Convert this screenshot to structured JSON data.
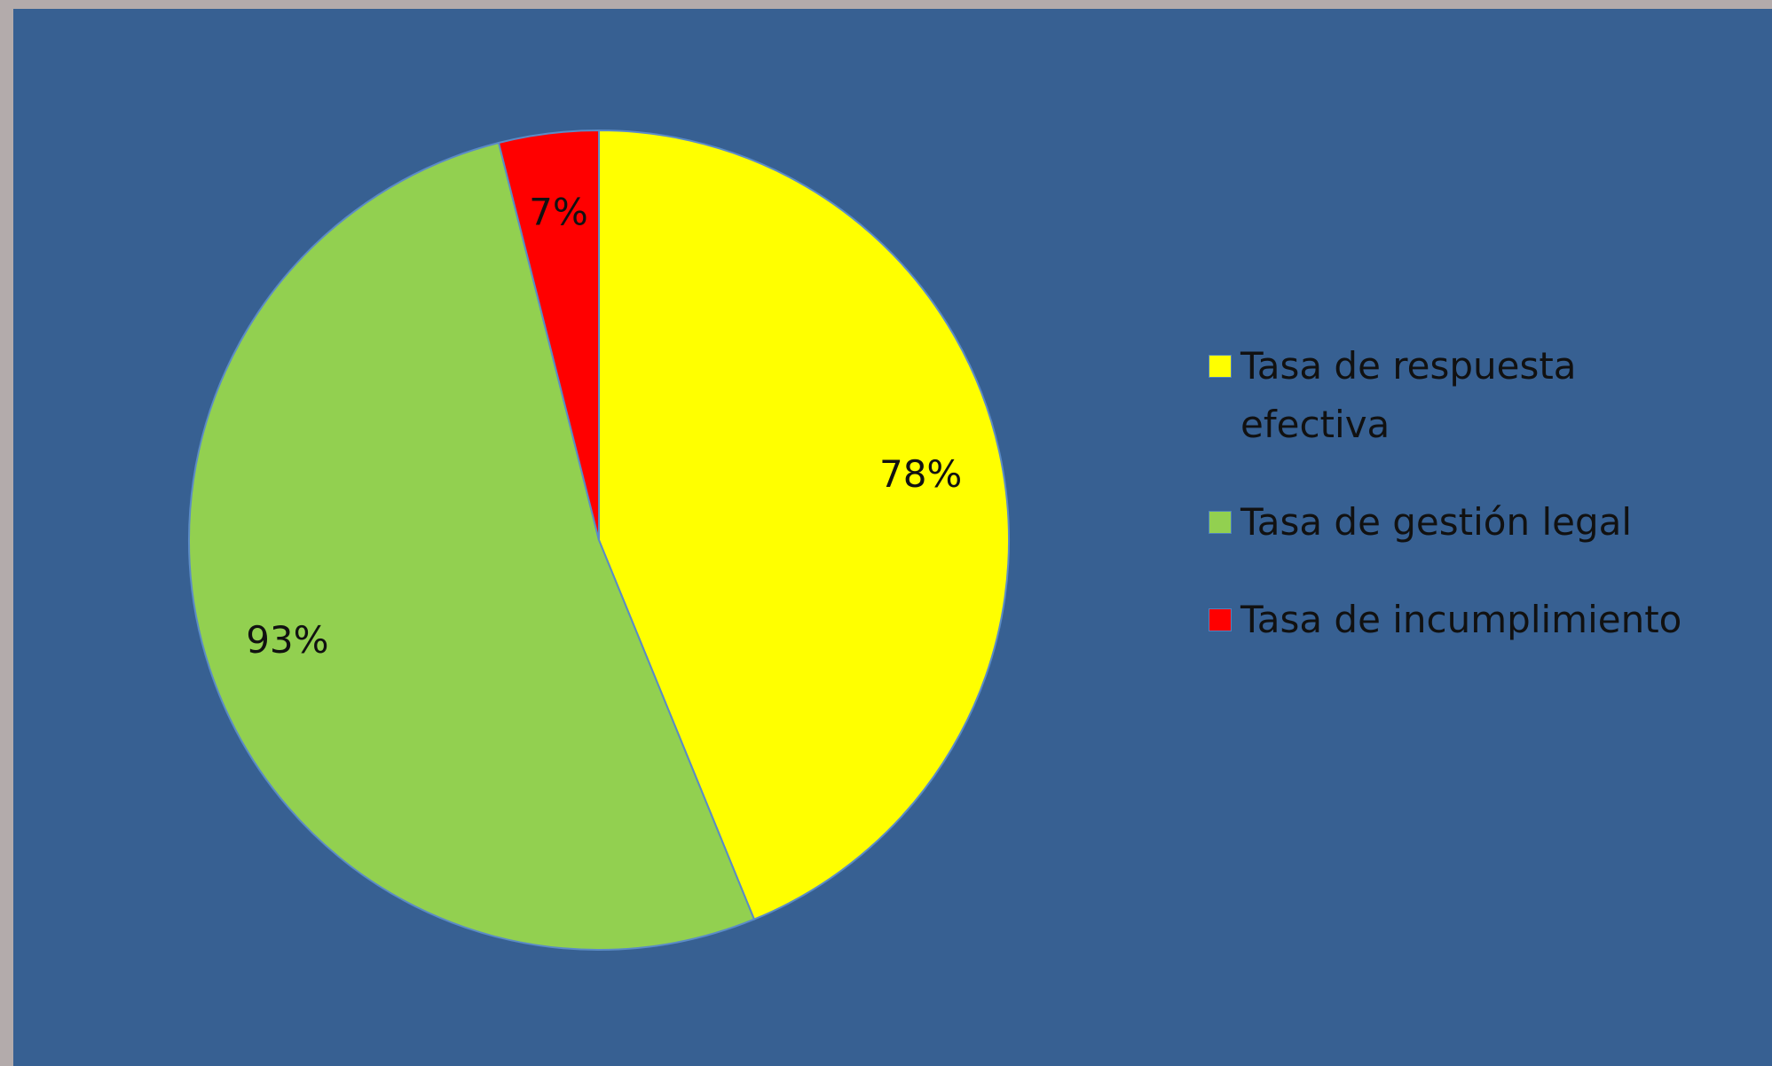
{
  "chart_data": {
    "type": "pie",
    "categories": [
      "Tasa de respuesta efectiva",
      "Tasa de gestión legal",
      "Tasa de incumplimiento"
    ],
    "values": [
      78,
      93,
      7
    ],
    "value_labels": [
      "78%",
      "93%",
      "7%"
    ],
    "colors": [
      "#ffff00",
      "#92d050",
      "#ff0000"
    ],
    "legend": "right"
  }
}
